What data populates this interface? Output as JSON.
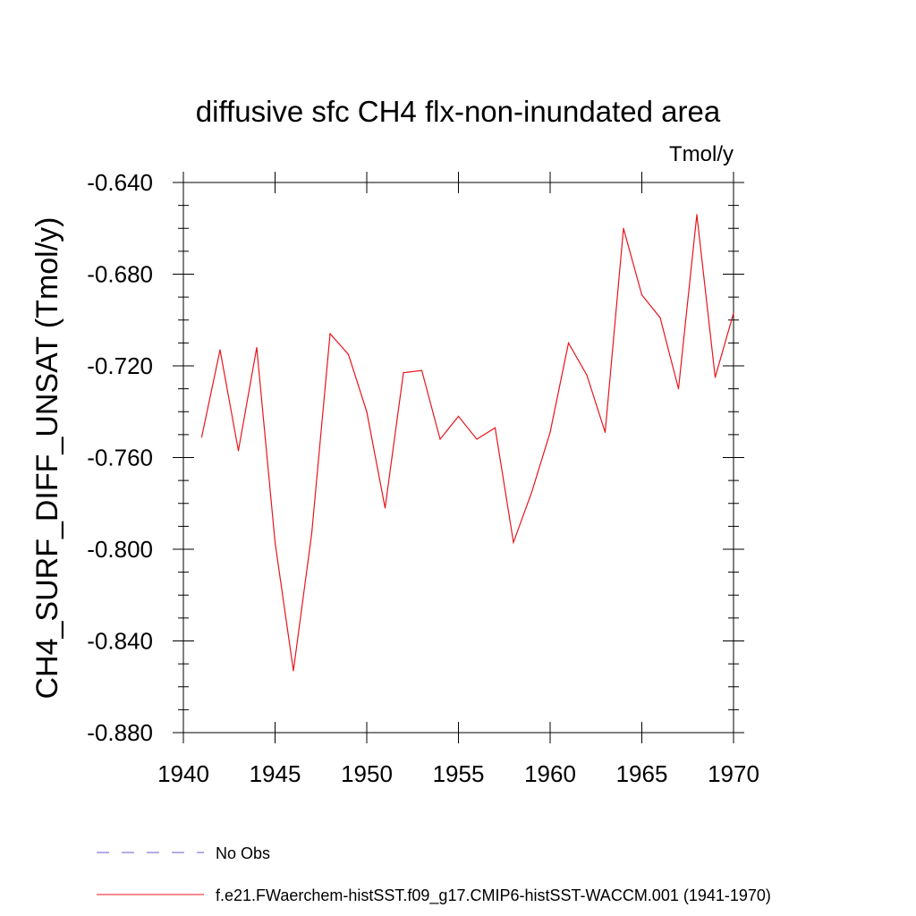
{
  "chart_data": {
    "type": "line",
    "title": "diffusive sfc CH4 flx-non-inundated area",
    "units_label": "Tmol/y",
    "ylabel": "CH4_SURF_DIFF_UNSAT  (Tmol/y)",
    "xlabel": "",
    "xlim": [
      1940,
      1970
    ],
    "ylim": [
      -0.88,
      -0.64
    ],
    "x_ticks": [
      1940,
      1945,
      1950,
      1955,
      1960,
      1965,
      1970
    ],
    "x_tick_labels": [
      "1940",
      "1945",
      "1950",
      "1955",
      "1960",
      "1965",
      "1970"
    ],
    "y_ticks": [
      -0.64,
      -0.68,
      -0.72,
      -0.76,
      -0.8,
      -0.84,
      -0.88
    ],
    "y_tick_labels": [
      "-0.640",
      "-0.680",
      "-0.720",
      "-0.760",
      "-0.800",
      "-0.840",
      "-0.880"
    ],
    "grid": false,
    "legend_position": "bottom",
    "series": [
      {
        "name": "f.e21.FWaerchem-histSST.f09_g17.CMIP6-histSST-WACCM.001 (1941-1970)",
        "color": "#e8141c",
        "style": "solid",
        "x": [
          1941,
          1942,
          1943,
          1944,
          1945,
          1946,
          1947,
          1948,
          1949,
          1950,
          1951,
          1952,
          1953,
          1954,
          1955,
          1956,
          1957,
          1958,
          1959,
          1960,
          1961,
          1962,
          1963,
          1964,
          1965,
          1966,
          1967,
          1968,
          1969,
          1970
        ],
        "values": [
          -0.751,
          -0.713,
          -0.757,
          -0.712,
          -0.797,
          -0.853,
          -0.793,
          -0.706,
          -0.715,
          -0.74,
          -0.782,
          -0.723,
          -0.722,
          -0.752,
          -0.742,
          -0.752,
          -0.747,
          -0.797,
          -0.775,
          -0.749,
          -0.71,
          -0.724,
          -0.749,
          -0.66,
          -0.689,
          -0.699,
          -0.73,
          -0.654,
          -0.725,
          -0.697
        ]
      }
    ],
    "legend": [
      {
        "label": "No Obs",
        "color": "#6a5acd",
        "style": "dashed"
      },
      {
        "label": "f.e21.FWaerchem-histSST.f09_g17.CMIP6-histSST-WACCM.001 (1941-1970)",
        "color": "#e8141c",
        "style": "solid"
      }
    ]
  }
}
